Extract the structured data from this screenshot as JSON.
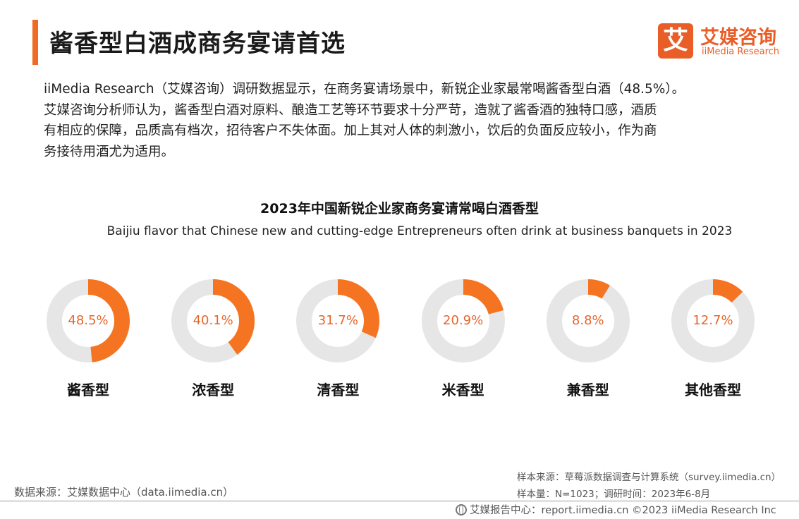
{
  "header": {
    "title": "酱香型白酒成商务宴请首选",
    "logo_mark": "艾",
    "logo_cn": "艾媒咨询",
    "logo_en": "iiMedia Research"
  },
  "intro": {
    "line1": "iiMedia Research（艾媒咨询）调研数据显示，在商务宴请场景中，新锐企业家最常喝酱香型白酒（48.5%）。",
    "line2": "艾媒咨询分析师认为，酱香型白酒对原料、酿造工艺等环节要求十分严苛，造就了酱香酒的独特口感，酒质",
    "line3": "有相应的保障，品质高有档次，招待客户不失体面。加上其对人体的刺激小，饮后的负面反应较小，作为商",
    "line4": "务接待用酒尤为适用。"
  },
  "chart_data": {
    "type": "pie",
    "title": "2023年中国新锐企业家商务宴请常喝白酒香型",
    "subtitle": "Baijiu flavor that Chinese new and cutting-edge Entrepreneurs often drink at business banquets in 2023",
    "categories": [
      "酱香型",
      "浓香型",
      "清香型",
      "米香型",
      "兼香型",
      "其他香型"
    ],
    "values": [
      48.5,
      40.1,
      31.7,
      20.9,
      8.8,
      12.7
    ],
    "labels": [
      "48.5%",
      "40.1%",
      "31.7%",
      "20.9%",
      "8.8%",
      "12.7%"
    ],
    "unit": "%",
    "colors": {
      "filled": "#f57421",
      "track": "#e6e6e6",
      "value_text": "#e8652b"
    }
  },
  "footer": {
    "sample_source": "样本来源：草莓派数据调查与计算系统（survey.iimedia.cn）",
    "sample_size": "样本量：N=1023；调研时间：2023年6-8月",
    "data_source": "数据来源：艾媒数据中心（data.iimedia.cn）",
    "credit": "艾媒报告中心：report.iimedia.cn  ©2023  iiMedia Research  Inc"
  },
  "colors": {
    "accent": "#f06a25",
    "brand": "#e95e27"
  }
}
